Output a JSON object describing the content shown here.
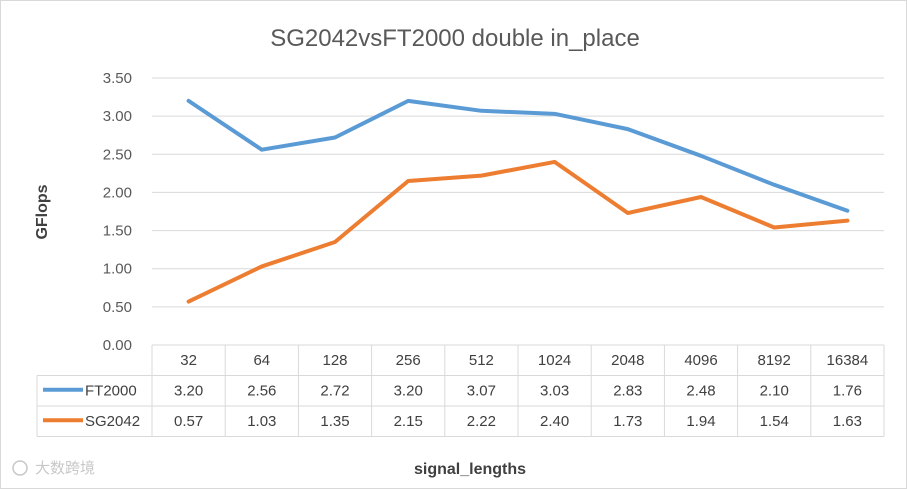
{
  "chart_data": {
    "type": "line",
    "title": "SG2042vsFT2000  double in_place",
    "xlabel": "signal_lengths",
    "ylabel": "GFlops",
    "ylim": [
      0,
      3.5
    ],
    "yticks": [
      "0.00",
      "0.50",
      "1.00",
      "1.50",
      "2.00",
      "2.50",
      "3.00",
      "3.50"
    ],
    "categories": [
      "32",
      "64",
      "128",
      "256",
      "512",
      "1024",
      "2048",
      "4096",
      "8192",
      "16384"
    ],
    "series": [
      {
        "name": "FT2000",
        "color": "#5b9bd5",
        "values": [
          3.2,
          2.56,
          2.72,
          3.2,
          3.07,
          3.03,
          2.83,
          2.48,
          2.1,
          1.76
        ],
        "labels": [
          "3.20",
          "2.56",
          "2.72",
          "3.20",
          "3.07",
          "3.03",
          "2.83",
          "2.48",
          "2.10",
          "1.76"
        ]
      },
      {
        "name": "SG2042",
        "color": "#ed7d31",
        "values": [
          0.57,
          1.03,
          1.35,
          2.15,
          2.22,
          2.4,
          1.73,
          1.94,
          1.54,
          1.63
        ],
        "labels": [
          "0.57",
          "1.03",
          "1.35",
          "2.15",
          "2.22",
          "2.40",
          "1.73",
          "1.94",
          "1.54",
          "1.63"
        ]
      }
    ],
    "grid": true,
    "legend": "data-table"
  },
  "watermark": "大数跨境"
}
